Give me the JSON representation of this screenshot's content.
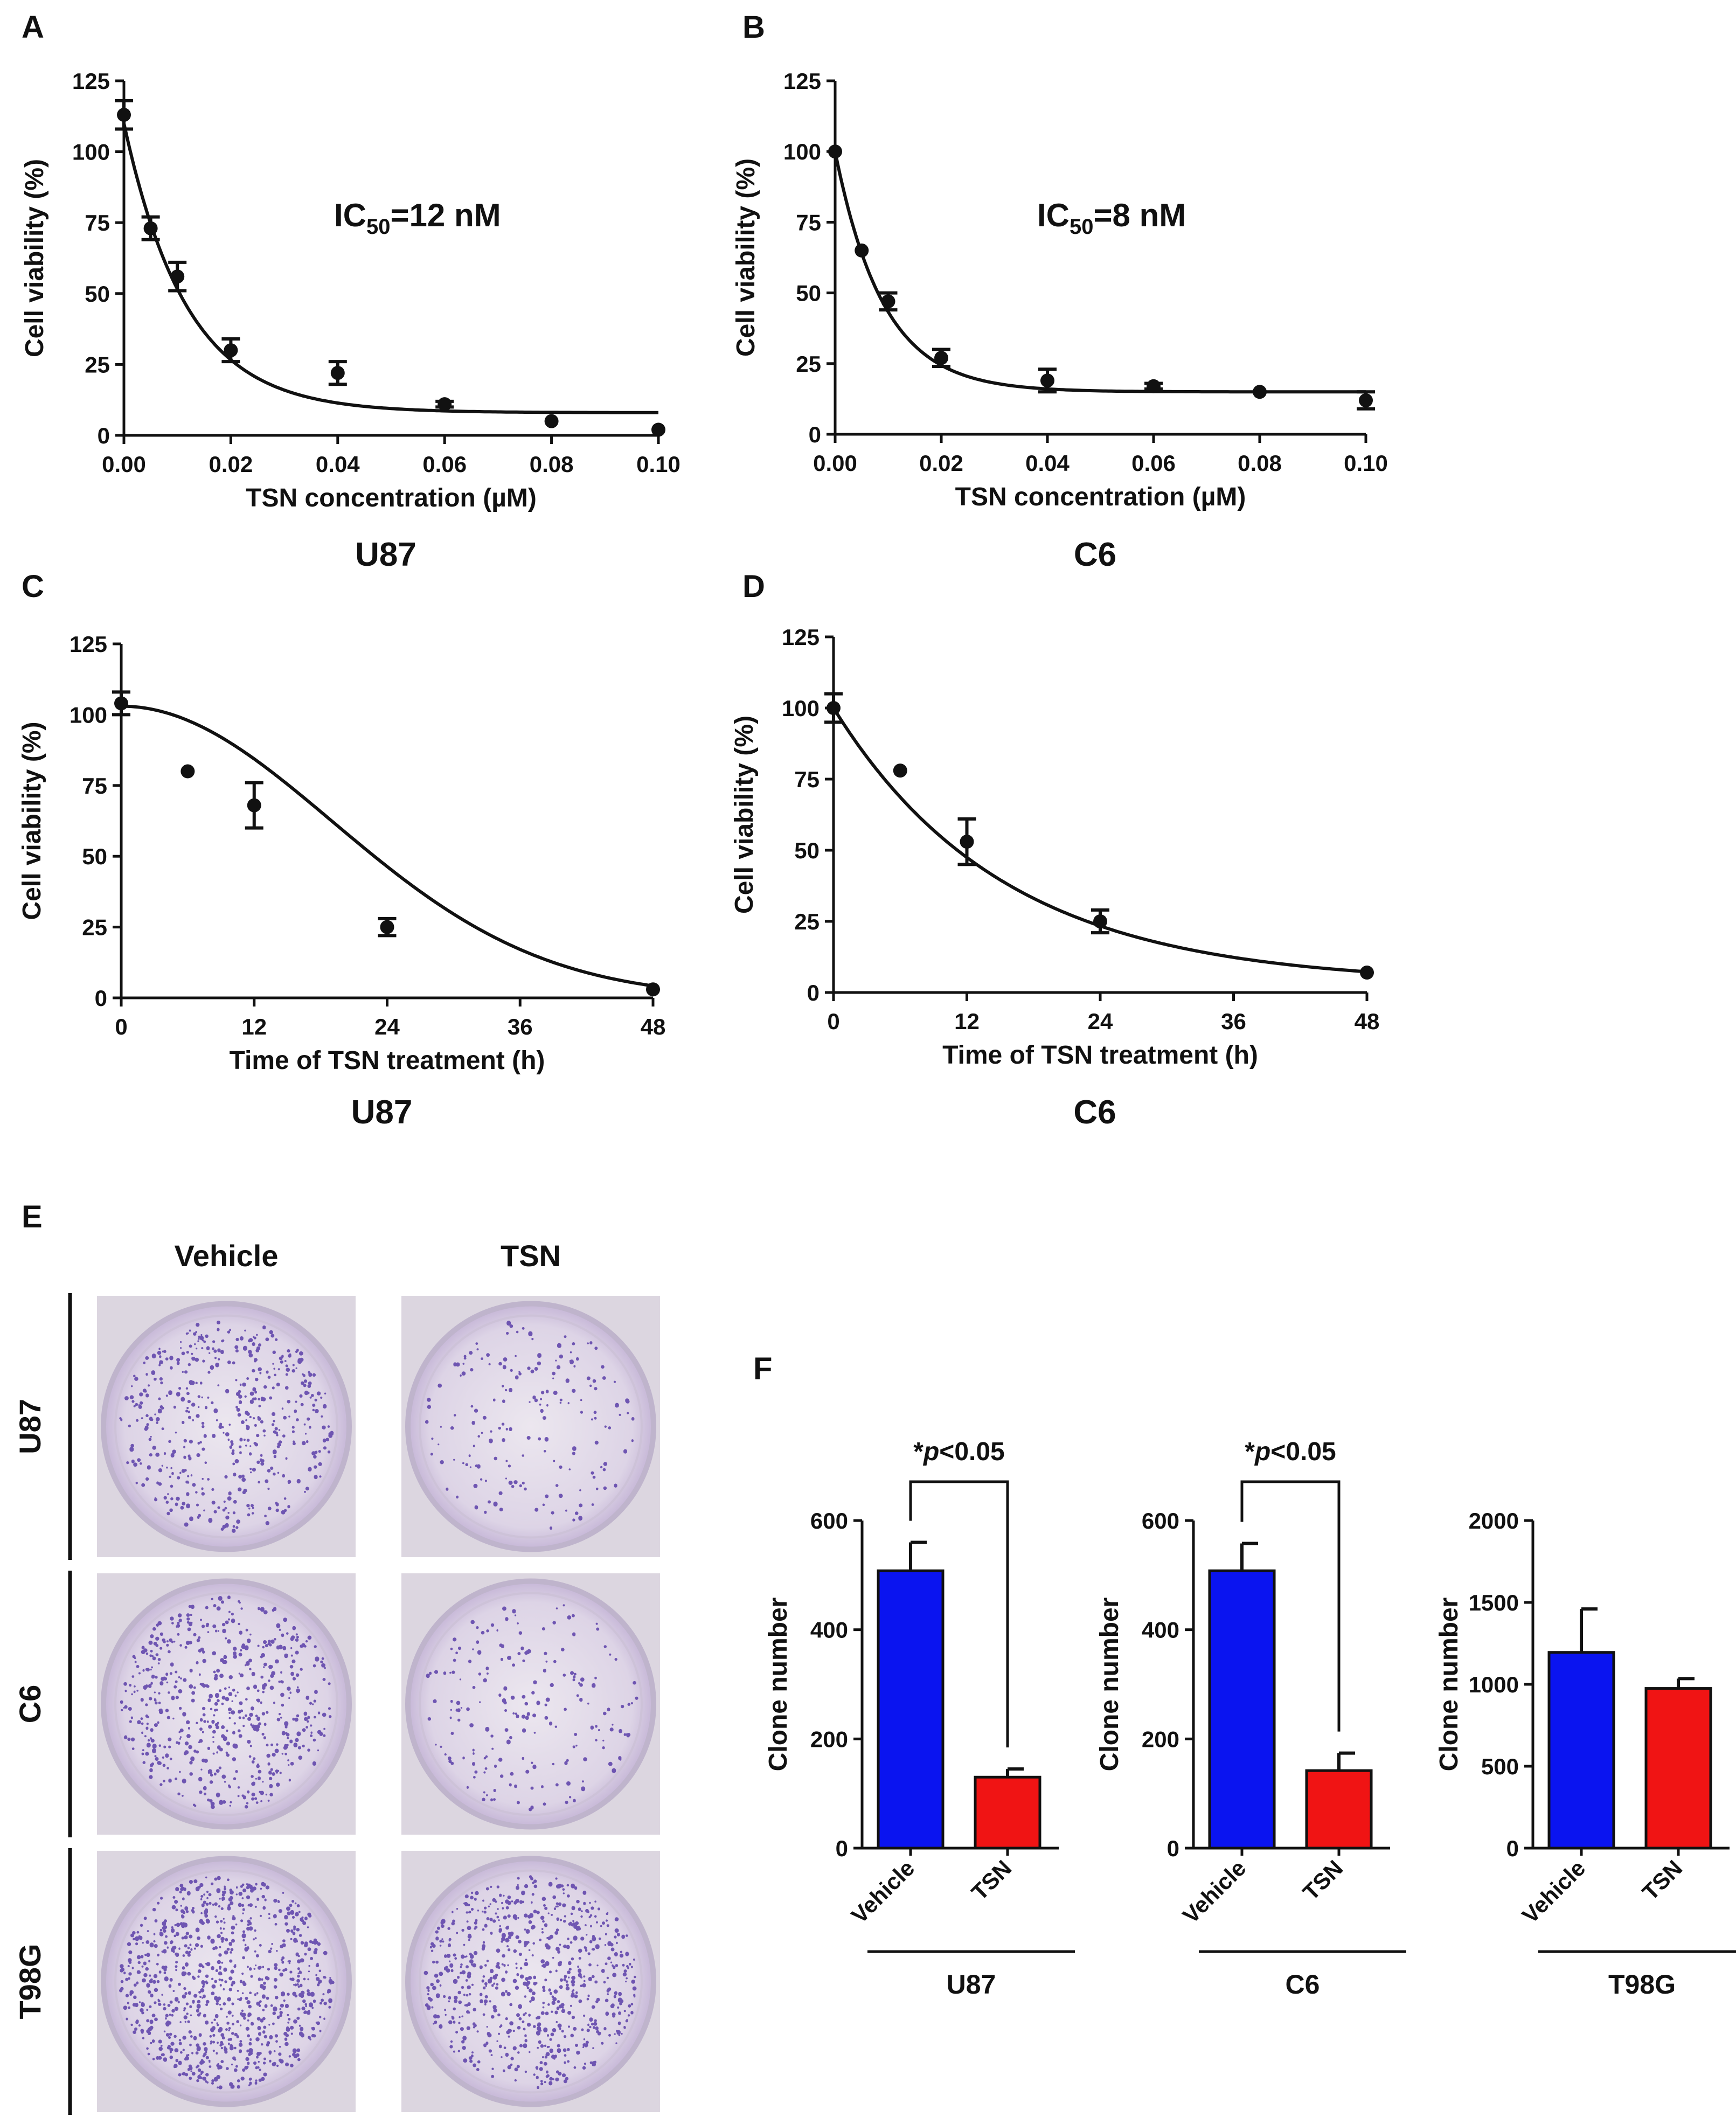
{
  "panels": {
    "A": "A",
    "B": "B",
    "C": "C",
    "D": "D",
    "E": "E",
    "F": "F"
  },
  "colors": {
    "vehicle": "#0a14f0",
    "tsn": "#f01414",
    "dish_bg": "#e8e2ec",
    "dish_rim": "#bfb4cc",
    "colony": "#5a3ea8"
  },
  "chart_data": [
    {
      "id": "A",
      "type": "scatter",
      "title": "U87",
      "annotation": {
        "prefix": "IC",
        "sub": "50",
        "suffix": "=12 nM"
      },
      "xlabel": "TSN concentration (µM)",
      "ylabel": "Cell viability (%)",
      "xlim": [
        0,
        0.1
      ],
      "ylim": [
        0,
        125
      ],
      "xticks": [
        "0.00",
        "0.02",
        "0.04",
        "0.06",
        "0.08",
        "0.10"
      ],
      "yticks": [
        "0",
        "25",
        "50",
        "75",
        "100",
        "125"
      ],
      "x": [
        0,
        0.005,
        0.01,
        0.02,
        0.04,
        0.06,
        0.08,
        0.1
      ],
      "y": [
        113,
        73,
        56,
        30,
        22,
        11,
        5,
        2
      ],
      "err": [
        5,
        4,
        5,
        4,
        4,
        1,
        0,
        0
      ],
      "fit": {
        "kind": "exp",
        "bottom": 8,
        "top": 110,
        "k": 85
      }
    },
    {
      "id": "B",
      "type": "scatter",
      "title": "C6",
      "annotation": {
        "prefix": "IC",
        "sub": "50",
        "suffix": "=8 nM"
      },
      "xlabel": "TSN concentration (µM)",
      "ylabel": "Cell viability (%)",
      "xlim": [
        0,
        0.1
      ],
      "ylim": [
        0,
        125
      ],
      "xticks": [
        "0.00",
        "0.02",
        "0.04",
        "0.06",
        "0.08",
        "0.10"
      ],
      "yticks": [
        "0",
        "25",
        "50",
        "75",
        "100",
        "125"
      ],
      "x": [
        0,
        0.005,
        0.01,
        0.02,
        0.04,
        0.06,
        0.08,
        0.1
      ],
      "y": [
        100,
        65,
        47,
        27,
        19,
        17,
        15,
        12
      ],
      "err": [
        0,
        0,
        3,
        3,
        4,
        1,
        0,
        3
      ],
      "fit": {
        "kind": "exp",
        "bottom": 15,
        "top": 100,
        "k": 110
      }
    },
    {
      "id": "C",
      "type": "scatter",
      "title": "U87",
      "xlabel": "Time of TSN treatment (h)",
      "ylabel": "Cell viability (%)",
      "xlim": [
        0,
        48
      ],
      "ylim": [
        0,
        125
      ],
      "xticks": [
        "0",
        "12",
        "24",
        "36",
        "48"
      ],
      "yticks": [
        "0",
        "25",
        "50",
        "75",
        "100",
        "125"
      ],
      "x": [
        0,
        6,
        12,
        24,
        48
      ],
      "y": [
        104,
        80,
        68,
        25,
        3
      ],
      "err": [
        4,
        0,
        8,
        3,
        0
      ],
      "fit": {
        "kind": "gauss",
        "top": 103,
        "s": 19
      }
    },
    {
      "id": "D",
      "type": "scatter",
      "title": "C6",
      "xlabel": "Time of TSN treatment (h)",
      "ylabel": "Cell viability (%)",
      "xlim": [
        0,
        48
      ],
      "ylim": [
        0,
        125
      ],
      "xticks": [
        "0",
        "12",
        "24",
        "36",
        "48"
      ],
      "yticks": [
        "0",
        "25",
        "50",
        "75",
        "100",
        "125"
      ],
      "x": [
        0,
        6,
        12,
        24,
        48
      ],
      "y": [
        100,
        78,
        53,
        25,
        7
      ],
      "err": [
        5,
        0,
        8,
        4,
        0
      ],
      "fit": {
        "kind": "exp",
        "bottom": 3,
        "top": 100,
        "k": 0.065
      }
    },
    {
      "id": "F1",
      "type": "bar",
      "title": "U87",
      "ylabel": "Clone number",
      "categories": [
        "Vehicle",
        "TSN"
      ],
      "values": [
        508,
        130
      ],
      "err": [
        52,
        15
      ],
      "ylim": [
        0,
        600
      ],
      "yticks": [
        "0",
        "200",
        "400",
        "600"
      ],
      "significance": {
        "star": "*",
        "p": "p",
        "rest": "<0.05"
      }
    },
    {
      "id": "F2",
      "type": "bar",
      "title": "C6",
      "ylabel": "Clone number",
      "categories": [
        "Vehicle",
        "TSN"
      ],
      "values": [
        508,
        142
      ],
      "err": [
        50,
        32
      ],
      "ylim": [
        0,
        600
      ],
      "yticks": [
        "0",
        "200",
        "400",
        "600"
      ],
      "significance": {
        "star": "*",
        "p": "p",
        "rest": "<0.05"
      }
    },
    {
      "id": "F3",
      "type": "bar",
      "title": "T98G",
      "ylabel": "Clone number",
      "categories": [
        "Vehicle",
        "TSN"
      ],
      "values": [
        1195,
        975
      ],
      "err": [
        265,
        60
      ],
      "ylim": [
        0,
        2000
      ],
      "yticks": [
        "0",
        "500",
        "1000",
        "1500",
        "2000"
      ]
    }
  ],
  "dishes": {
    "columns": [
      "Vehicle",
      "TSN"
    ],
    "rows": [
      "U87",
      "C6",
      "T98G"
    ],
    "colony_density": [
      [
        0.55,
        0.2
      ],
      [
        0.65,
        0.22
      ],
      [
        1.0,
        0.8
      ]
    ]
  }
}
